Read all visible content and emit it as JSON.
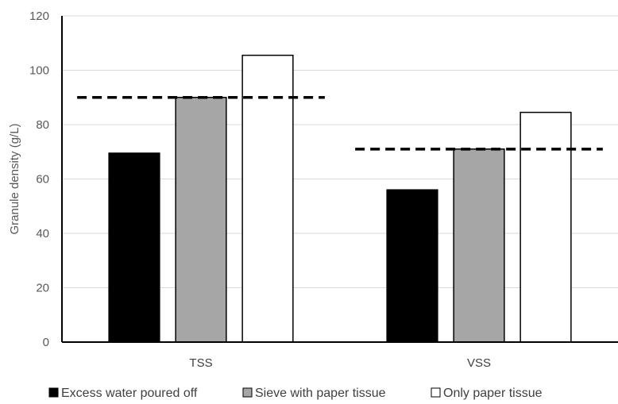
{
  "chart_data": {
    "type": "bar",
    "categories": [
      "TSS",
      "VSS"
    ],
    "series": [
      {
        "name": "Excess water poured off",
        "values": [
          69.5,
          56
        ],
        "color": "#000000"
      },
      {
        "name": "Sieve with paper tissue",
        "values": [
          90,
          71
        ],
        "color": "#a6a6a6"
      },
      {
        "name": "Only paper tissue",
        "values": [
          105.5,
          84.5
        ],
        "color": "#ffffff"
      }
    ],
    "reference_lines": [
      {
        "category": "TSS",
        "value": 90
      },
      {
        "category": "VSS",
        "value": 71
      }
    ],
    "ylabel": "Granule density (g/L)",
    "xlabel": "",
    "ylim": [
      0,
      120
    ],
    "yticks": [
      0,
      20,
      40,
      60,
      80,
      100,
      120
    ],
    "grid": true,
    "legend_position": "bottom"
  }
}
